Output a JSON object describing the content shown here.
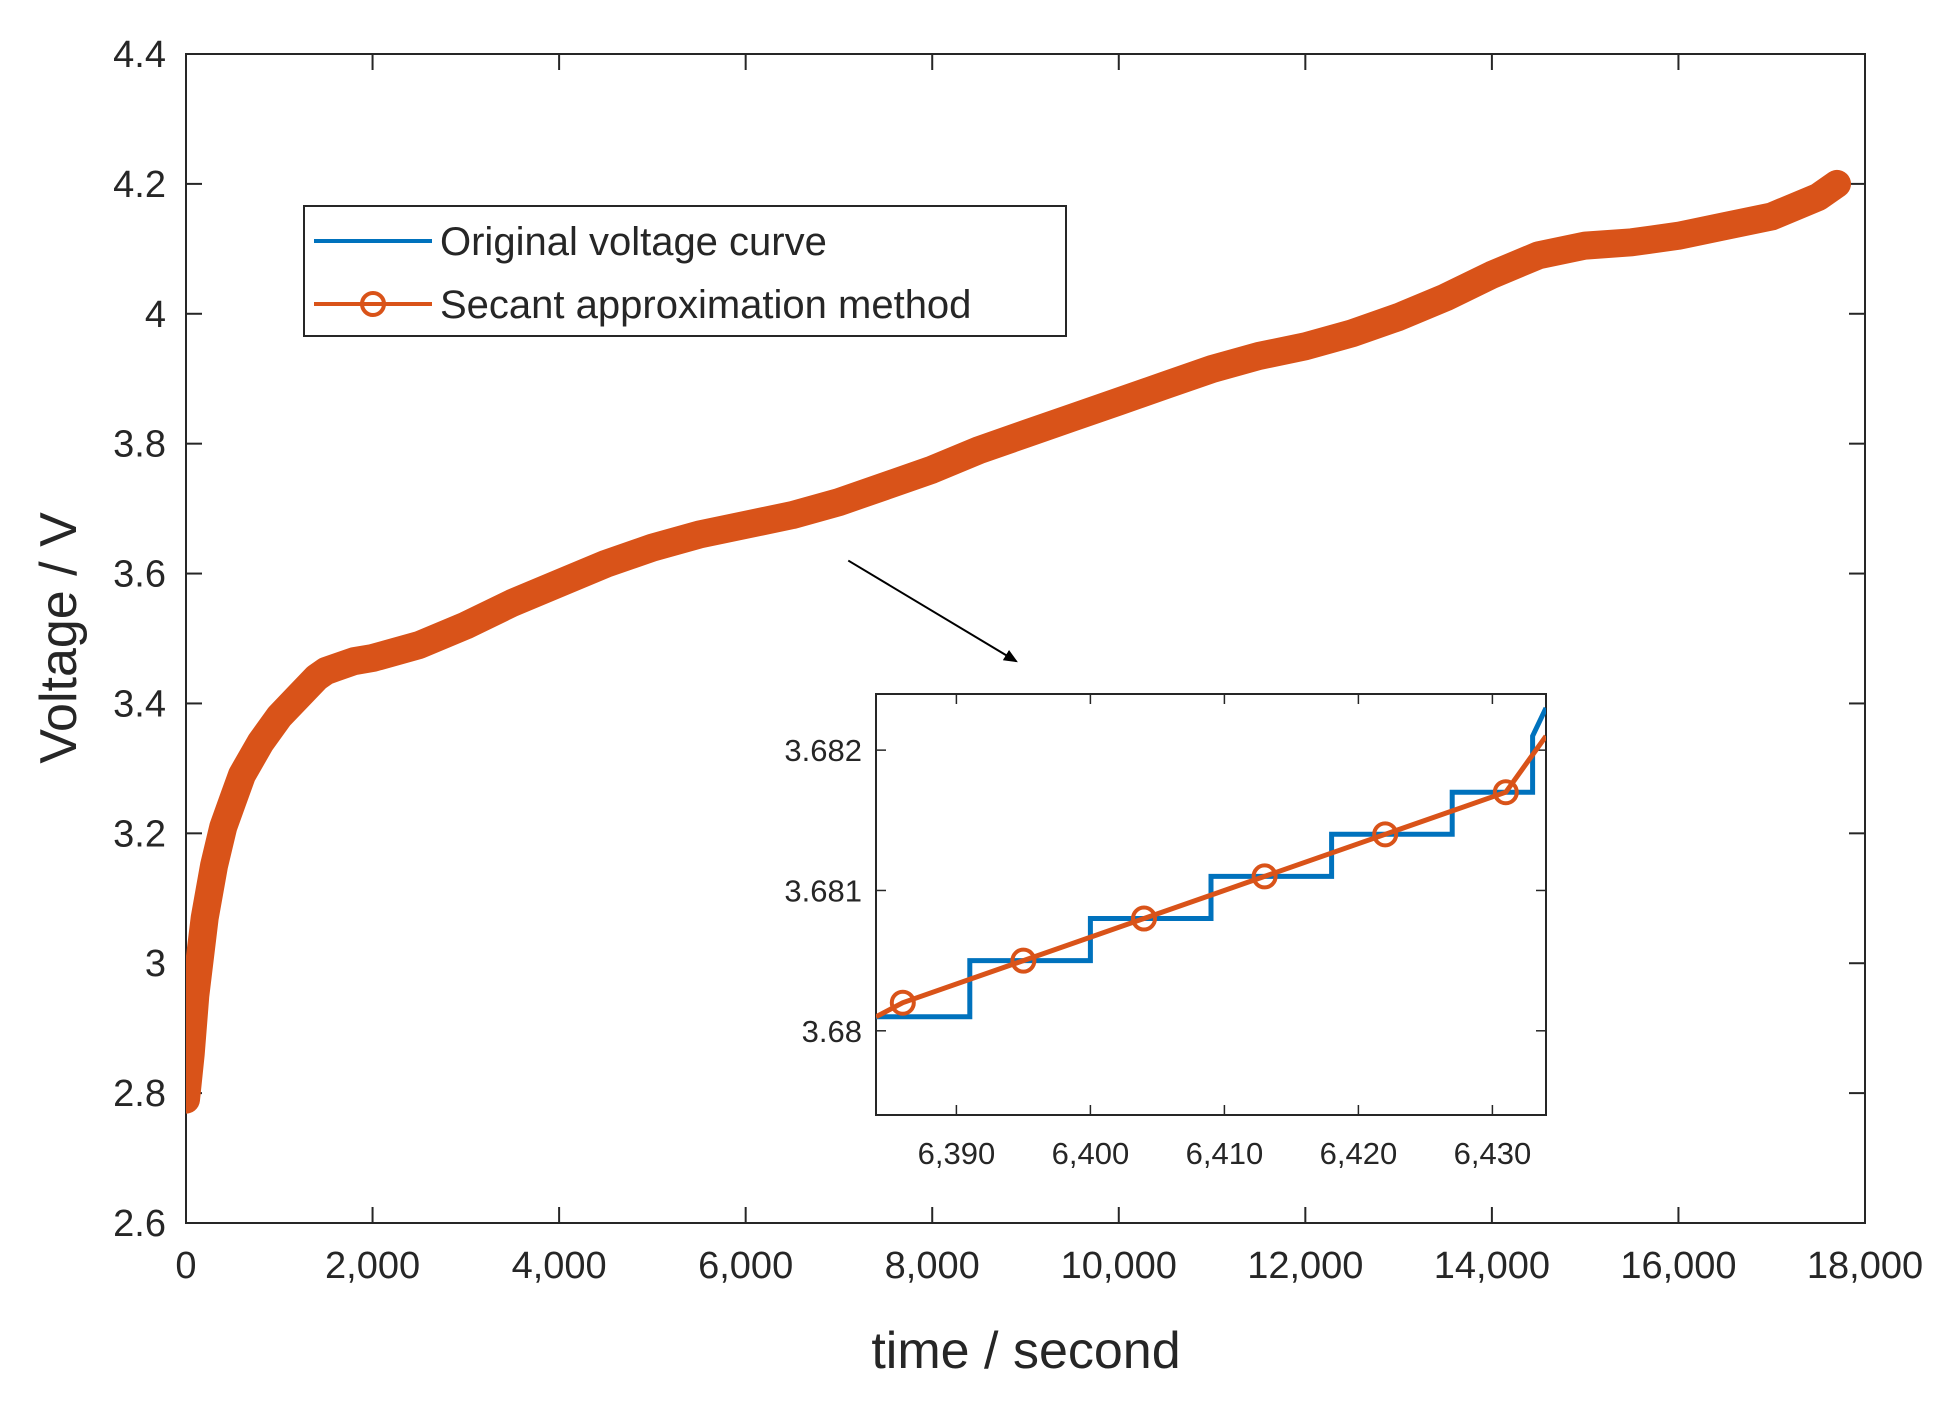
{
  "colors": {
    "original": "#0072BD",
    "secant": "#D95319",
    "axis": "#262626",
    "background": "#ffffff"
  },
  "chart_data": [
    {
      "id": "main",
      "type": "line",
      "title": "",
      "xlabel": "time / second",
      "ylabel": "Voltage / V",
      "xlim": [
        0,
        18000
      ],
      "ylim": [
        2.6,
        4.4
      ],
      "xticks": [
        0,
        2000,
        4000,
        6000,
        8000,
        10000,
        12000,
        14000,
        16000,
        18000
      ],
      "xtick_labels": [
        "0",
        "2,000",
        "4,000",
        "6,000",
        "8,000",
        "10,000",
        "12,000",
        "14,000",
        "16,000",
        "18,000"
      ],
      "yticks": [
        2.6,
        2.8,
        3.0,
        3.2,
        3.4,
        3.6,
        3.8,
        4.0,
        4.2,
        4.4
      ],
      "ytick_labels": [
        "2.6",
        "2.8",
        "3",
        "3.2",
        "3.4",
        "3.6",
        "3.8",
        "4",
        "4.2",
        "4.4"
      ],
      "grid": false,
      "legend": {
        "location": "top-left",
        "entries": [
          "Original voltage curve",
          "Secant approximation method"
        ]
      },
      "series": [
        {
          "name": "Secant approximation method",
          "x": [
            0,
            50,
            100,
            200,
            300,
            400,
            500,
            600,
            800,
            1000,
            1200,
            1400,
            1500,
            1600,
            1800,
            2000,
            2500,
            3000,
            3500,
            4000,
            4500,
            5000,
            5500,
            6000,
            6500,
            7000,
            7500,
            8000,
            8500,
            9000,
            9500,
            10000,
            10500,
            11000,
            11500,
            12000,
            12500,
            13000,
            13500,
            14000,
            14500,
            15000,
            15500,
            16000,
            16500,
            17000,
            17500,
            17700
          ],
          "y": [
            2.79,
            2.86,
            2.95,
            3.07,
            3.15,
            3.21,
            3.25,
            3.29,
            3.34,
            3.38,
            3.41,
            3.44,
            3.45,
            3.455,
            3.465,
            3.47,
            3.49,
            3.52,
            3.555,
            3.585,
            3.615,
            3.64,
            3.66,
            3.675,
            3.69,
            3.71,
            3.735,
            3.76,
            3.79,
            3.815,
            3.84,
            3.865,
            3.89,
            3.915,
            3.935,
            3.95,
            3.97,
            3.995,
            4.025,
            4.06,
            4.09,
            4.105,
            4.11,
            4.12,
            4.135,
            4.15,
            4.18,
            4.2
          ]
        }
      ],
      "annotation": {
        "type": "arrow",
        "from": [
          7100,
          3.62
        ],
        "to": [
          8900,
          3.465
        ]
      }
    },
    {
      "id": "inset",
      "type": "line",
      "title": "",
      "xlabel": "",
      "ylabel": "",
      "xlim": [
        6384,
        6434
      ],
      "ylim": [
        3.6794,
        3.6824
      ],
      "xticks": [
        6390,
        6400,
        6410,
        6420,
        6430
      ],
      "xtick_labels": [
        "6,390",
        "6,400",
        "6,410",
        "6,420",
        "6,430"
      ],
      "yticks": [
        3.68,
        3.681,
        3.682
      ],
      "ytick_labels": [
        "3.68",
        "3.681",
        "3.682"
      ],
      "grid": false,
      "series": [
        {
          "name": "Original voltage curve",
          "x": [
            6384,
            6391,
            6391,
            6400,
            6400,
            6409,
            6409,
            6418,
            6418,
            6427,
            6427,
            6433,
            6433,
            6434
          ],
          "y": [
            3.6801,
            3.6801,
            3.6805,
            3.6805,
            3.6808,
            3.6808,
            3.6811,
            3.6811,
            3.6814,
            3.6814,
            3.6817,
            3.6817,
            3.6821,
            3.6823
          ]
        },
        {
          "name": "Secant approximation method",
          "x": [
            6384,
            6386,
            6395,
            6404,
            6413,
            6422,
            6431,
            6434
          ],
          "y": [
            3.6801,
            3.6802,
            3.6805,
            3.6808,
            3.6811,
            3.6814,
            3.6817,
            3.6821
          ],
          "markers_x": [
            6386,
            6395,
            6404,
            6413,
            6422,
            6431
          ],
          "markers_y": [
            3.6802,
            3.6805,
            3.6808,
            3.6811,
            3.6814,
            3.6817
          ]
        }
      ]
    }
  ]
}
